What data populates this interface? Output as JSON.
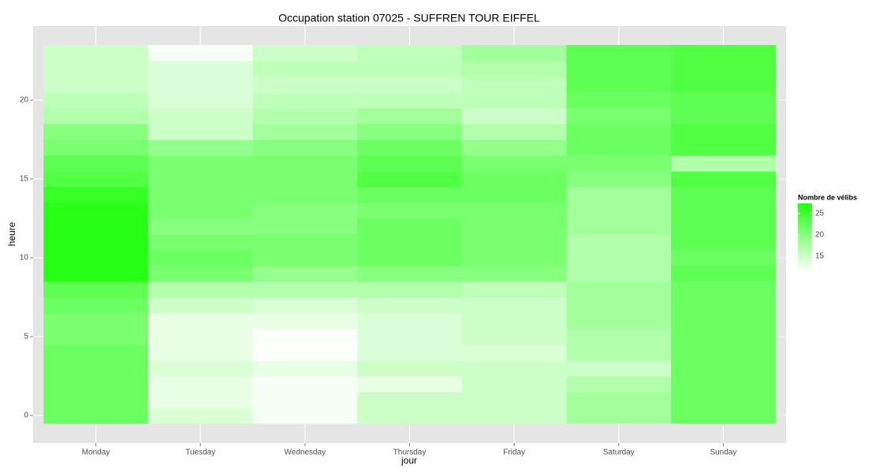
{
  "chart_data": {
    "type": "heatmap",
    "title": "Occupation station 07025 - SUFFREN TOUR EIFFEL",
    "xlabel": "jour",
    "ylabel": "heure",
    "categories": [
      "Monday",
      "Tuesday",
      "Wednesday",
      "Thursday",
      "Friday",
      "Saturday",
      "Sunday"
    ],
    "y": [
      0,
      1,
      2,
      3,
      4,
      5,
      6,
      7,
      8,
      9,
      10,
      11,
      12,
      13,
      14,
      15,
      16,
      17,
      18,
      19,
      20,
      21,
      22,
      23
    ],
    "values": [
      [
        22,
        22,
        22,
        22,
        22,
        21,
        21,
        22,
        23,
        27,
        27,
        27,
        27,
        27,
        26,
        24,
        23,
        21,
        20,
        17,
        16,
        15,
        15,
        15
      ],
      [
        14,
        13,
        13,
        14,
        13,
        13,
        13,
        15,
        17,
        21,
        22,
        21,
        20,
        21,
        21,
        21,
        21,
        19,
        15,
        15,
        14,
        14,
        14,
        12
      ],
      [
        12,
        12,
        12,
        13,
        11.5,
        11.5,
        13,
        14,
        17,
        19,
        21,
        21,
        20,
        20,
        21,
        21,
        21,
        20,
        18,
        17,
        16,
        15,
        16,
        15
      ],
      [
        15,
        15,
        13,
        15,
        14,
        14,
        14,
        15,
        17,
        20,
        22,
        22,
        22,
        21,
        22,
        24,
        23,
        22,
        20,
        18,
        16,
        15,
        16,
        16
      ],
      [
        15,
        15,
        15,
        15,
        14,
        15,
        15,
        15,
        16,
        20,
        21,
        21,
        21,
        21,
        22,
        22,
        21,
        19,
        17,
        15,
        16,
        16,
        17,
        18
      ],
      [
        18,
        18,
        17,
        15,
        17,
        17,
        18,
        18,
        18,
        17,
        17,
        17,
        18,
        18,
        18,
        20,
        21,
        22,
        22,
        21,
        22,
        23,
        23,
        23
      ],
      [
        22,
        22,
        22,
        22,
        22,
        22,
        22,
        22,
        22,
        23,
        22,
        23,
        23,
        23,
        23,
        24,
        17,
        24,
        24,
        23,
        23,
        24,
        24,
        24
      ]
    ],
    "ylim": [
      -1.75,
      24.7
    ],
    "yticks": [
      0,
      5,
      10,
      15,
      20
    ],
    "grid": true,
    "legend_title": "Nombre de vélibs",
    "colorlim": [
      11.3,
      27.4
    ],
    "colorticks": [
      15,
      20,
      25
    ],
    "color_low": "#ffffff",
    "color_high": "#22ff11"
  }
}
